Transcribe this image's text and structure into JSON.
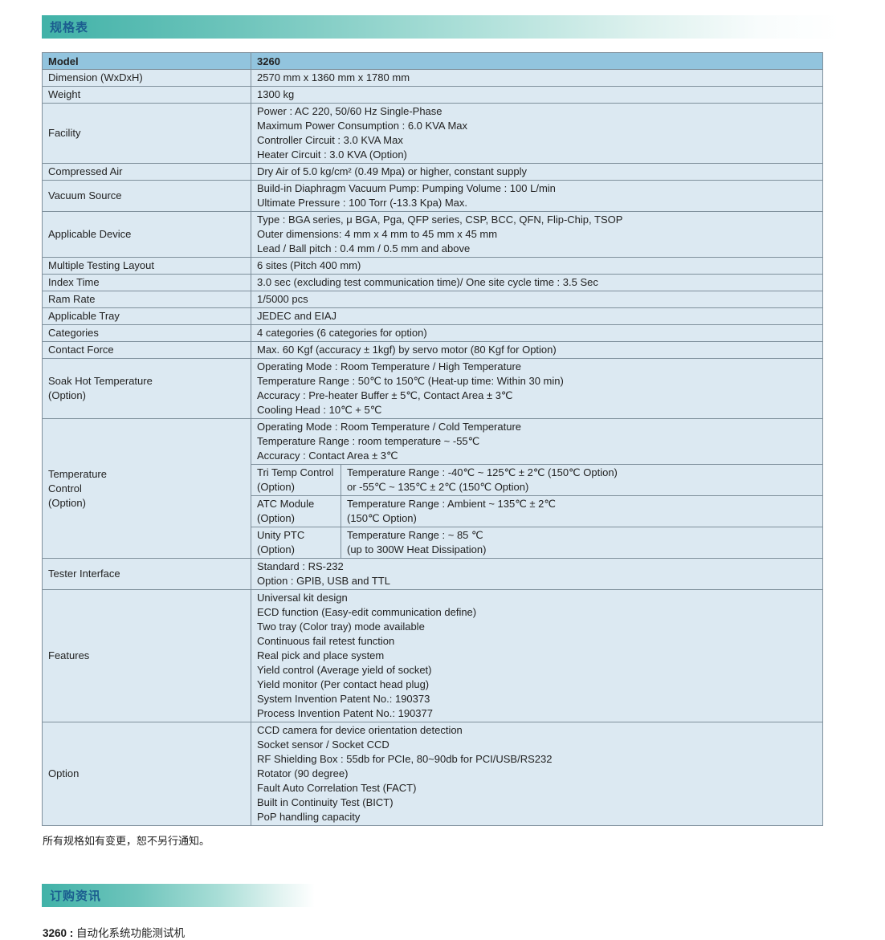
{
  "sections": {
    "spec_title": "规格表",
    "order_title": "订购资讯"
  },
  "table": {
    "header": {
      "label": "Model",
      "value": "3260"
    },
    "rows": [
      {
        "label_lines": [
          "Dimension (WxDxH)"
        ],
        "value_lines": [
          "2570 mm x 1360 mm x 1780 mm"
        ]
      },
      {
        "label_lines": [
          "Weight"
        ],
        "value_lines": [
          "1300 kg"
        ]
      },
      {
        "label_lines": [
          "Facility"
        ],
        "value_lines": [
          "Power : AC 220, 50/60 Hz Single-Phase",
          "Maximum Power Consumption : 6.0 KVA Max",
          "Controller Circuit : 3.0 KVA Max",
          "Heater Circuit : 3.0 KVA (Option)"
        ]
      },
      {
        "label_lines": [
          "Compressed Air"
        ],
        "value_lines": [
          "Dry Air of 5.0 kg/cm² (0.49 Mpa) or higher, constant supply"
        ]
      },
      {
        "label_lines": [
          "Vacuum Source"
        ],
        "value_lines": [
          "Build-in Diaphragm Vacuum Pump: Pumping Volume : 100 L/min",
          "Ultimate Pressure : 100 Torr (-13.3 Kpa) Max."
        ]
      },
      {
        "label_lines": [
          "Applicable Device"
        ],
        "value_lines": [
          "Type : BGA series,  μ BGA, Pga, QFP series, CSP, BCC, QFN, Flip-Chip, TSOP",
          "Outer dimensions:  4 mm x 4 mm to 45 mm x 45 mm",
          "Lead / Ball pitch : 0.4 mm / 0.5 mm and above"
        ]
      },
      {
        "label_lines": [
          "Multiple Testing Layout"
        ],
        "value_lines": [
          "6 sites (Pitch 400 mm)"
        ]
      },
      {
        "label_lines": [
          "Index Time"
        ],
        "value_lines": [
          "3.0 sec (excluding test communication time)/ One site cycle time : 3.5 Sec"
        ]
      },
      {
        "label_lines": [
          "Ram Rate"
        ],
        "value_lines": [
          "1/5000 pcs"
        ]
      },
      {
        "label_lines": [
          "Applicable Tray"
        ],
        "value_lines": [
          "JEDEC and EIAJ"
        ]
      },
      {
        "label_lines": [
          "Categories"
        ],
        "value_lines": [
          "4 categories (6 categories for option)"
        ]
      },
      {
        "label_lines": [
          "Contact Force"
        ],
        "value_lines": [
          "Max. 60 Kgf (accuracy ± 1kgf) by servo motor (80 Kgf for Option)"
        ]
      },
      {
        "label_lines": [
          "Soak Hot Temperature",
          "(Option)"
        ],
        "value_lines": [
          "Operating Mode : Room Temperature / High Temperature",
          "Temperature Range : 50℃ to 150℃ (Heat-up time: Within 30 min)",
          "Accuracy : Pre-heater Buffer ± 5℃, Contact Area ± 3℃",
          "Cooling Head : 10℃ + 5℃"
        ]
      },
      {
        "label_lines": [
          "Temperature",
          "Control",
          "(Option)"
        ],
        "value_lines": [
          "Operating Mode : Room Temperature / Cold Temperature",
          "Temperature Range : room temperature ~ -55℃",
          "Accuracy : Contact Area ± 3℃"
        ],
        "sub_rows": [
          {
            "name_lines": [
              "Tri Temp Control",
              "(Option)"
            ],
            "value_lines": [
              "Temperature Range : -40℃ ~ 125℃  ± 2℃ (150℃ Option)",
              "or -55℃ ~ 135℃  ± 2℃ (150℃ Option)"
            ]
          },
          {
            "name_lines": [
              "ATC Module",
              "(Option)"
            ],
            "value_lines": [
              "Temperature Range : Ambient  ~ 135℃ ± 2℃",
              "(150℃ Option)"
            ]
          },
          {
            "name_lines": [
              "Unity PTC",
              "(Option)"
            ],
            "value_lines": [
              "Temperature Range : ~ 85 ℃",
              "(up to 300W Heat Dissipation)"
            ]
          }
        ]
      },
      {
        "label_lines": [
          "Tester Interface"
        ],
        "value_lines": [
          "Standard : RS-232",
          "Option : GPIB, USB and TTL"
        ]
      },
      {
        "label_lines": [
          "Features"
        ],
        "value_lines": [
          "Universal kit design",
          "ECD function (Easy-edit communication define)",
          "Two tray (Color tray) mode available",
          "Continuous fail retest function",
          "Real pick and place system",
          "Yield control (Average yield of socket)",
          "Yield monitor (Per contact head plug)",
          "System Invention Patent No.: 190373",
          "Process Invention Patent No.: 190377"
        ]
      },
      {
        "label_lines": [
          "Option"
        ],
        "value_lines": [
          "CCD camera for device orientation detection",
          "Socket sensor / Socket CCD",
          "RF Shielding Box : 55db for PCIe, 80~90db for PCI/USB/RS232",
          "Rotator (90 degree)",
          "Fault Auto Correlation Test (FACT)",
          "Built in Continuity Test (BICT)",
          "PoP handling capacity"
        ]
      }
    ]
  },
  "footnote": "所有规格如有变更，恕不另行通知。",
  "order_info": {
    "model_label": "3260 :",
    "description": "自动化系统功能测试机"
  },
  "colors": {
    "accent_teal": "#41b2a8",
    "heading_blue": "#1b5d8f",
    "table_header_bg": "#92c4de",
    "table_body_bg": "#dce9f2",
    "table_border": "#7f909c"
  }
}
